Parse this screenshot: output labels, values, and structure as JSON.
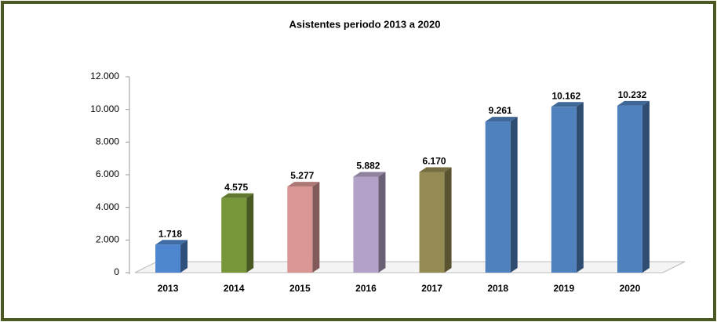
{
  "chart_data": {
    "type": "bar3d",
    "title": "Asistentes periodo 2013 a 2020",
    "categories": [
      "2013",
      "2014",
      "2015",
      "2016",
      "2017",
      "2018",
      "2019",
      "2020"
    ],
    "values": [
      1718,
      4575,
      5277,
      5882,
      6170,
      9261,
      10162,
      10232
    ],
    "value_labels": [
      "1.718",
      "4.575",
      "5.277",
      "5.882",
      "6.170",
      "9.261",
      "10.162",
      "10.232"
    ],
    "colors": [
      "#4f86d0",
      "#77963a",
      "#d99694",
      "#b3a2c7",
      "#948a54",
      "#4f81bd",
      "#4f81bd",
      "#4f81bd"
    ],
    "ylim": [
      0,
      12000
    ],
    "yticks": [
      0,
      {
        "value": 2000,
        "label": "2.000"
      },
      {
        "value": 4000,
        "label": "4.000"
      },
      {
        "value": 6000,
        "label": "6.000"
      },
      {
        "value": 8000,
        "label": "8.000"
      },
      {
        "value": 10000,
        "label": "10.000"
      },
      {
        "value": 12000,
        "label": "12.000"
      }
    ],
    "grid": false
  }
}
